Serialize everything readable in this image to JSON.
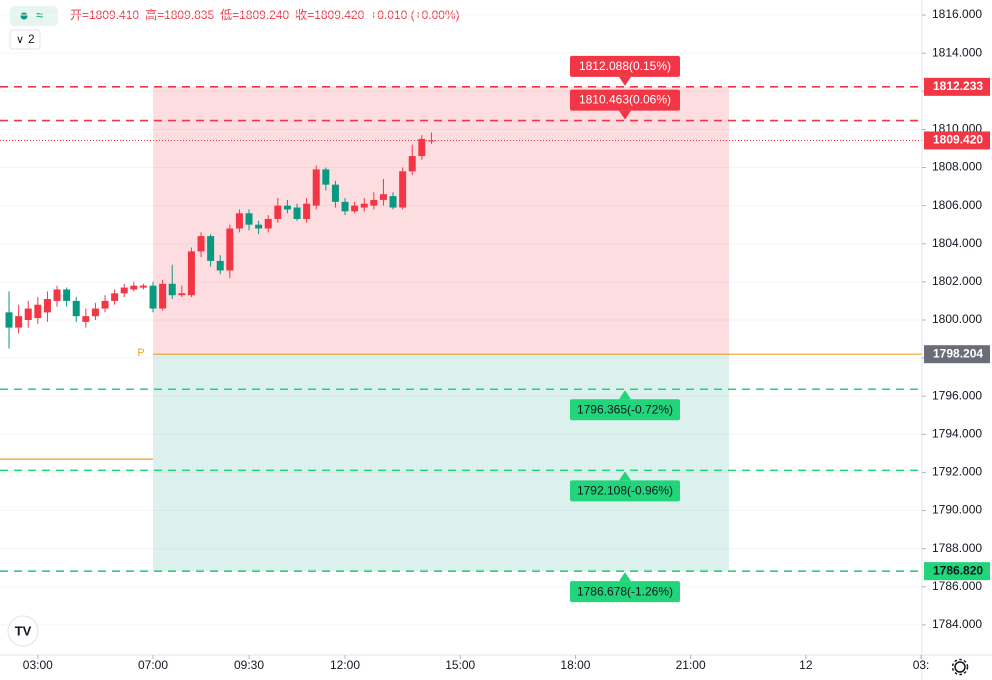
{
  "chart_data": {
    "type": "candlestick",
    "legend_count": "2",
    "ohlc": [
      "开=1809.410",
      "高=1809.835",
      "低=1809.240",
      "收=1809.420",
      "+0.010 (+0.00%)"
    ],
    "x": [
      -15,
      -14,
      -13,
      -12,
      -11,
      -10,
      -9,
      -8,
      -7,
      -6,
      -5,
      -4,
      -3,
      -2,
      -1,
      0,
      1,
      2,
      3,
      4,
      5,
      6,
      7,
      8,
      9,
      10,
      11,
      12,
      13,
      14,
      15,
      16,
      17,
      18,
      19,
      20,
      21,
      22,
      23,
      24,
      25,
      26,
      27,
      28,
      29
    ],
    "open": [
      1800.4,
      1799.6,
      1800.0,
      1800.1,
      1800.4,
      1801.0,
      1801.6,
      1801.0,
      1799.9,
      1800.2,
      1800.6,
      1801.0,
      1801.4,
      1801.6,
      1801.7,
      1801.8,
      1800.6,
      1801.9,
      1801.3,
      1801.3,
      1803.6,
      1804.4,
      1803.1,
      1802.6,
      1804.8,
      1805.6,
      1805.0,
      1804.8,
      1805.3,
      1806.0,
      1805.9,
      1805.3,
      1806.0,
      1807.9,
      1807.1,
      1806.2,
      1805.7,
      1805.9,
      1806.0,
      1806.3,
      1806.5,
      1805.9,
      1807.8,
      1808.6,
      1809.41
    ],
    "high": [
      1801.5,
      1800.8,
      1801.0,
      1801.2,
      1801.5,
      1801.8,
      1801.7,
      1801.2,
      1800.6,
      1800.9,
      1801.3,
      1801.6,
      1801.9,
      1802.0,
      1801.9,
      1802.0,
      1802.1,
      1802.9,
      1801.8,
      1803.8,
      1804.6,
      1804.5,
      1803.4,
      1805.0,
      1805.8,
      1805.8,
      1805.2,
      1805.5,
      1806.4,
      1806.3,
      1806.1,
      1806.4,
      1808.1,
      1808.0,
      1807.3,
      1806.4,
      1806.2,
      1806.4,
      1806.7,
      1807.4,
      1806.7,
      1808.0,
      1809.2,
      1809.7,
      1809.835
    ],
    "low": [
      1798.5,
      1799.3,
      1799.6,
      1799.8,
      1799.9,
      1800.7,
      1800.7,
      1799.9,
      1799.6,
      1800.0,
      1800.4,
      1800.8,
      1801.2,
      1801.5,
      1801.6,
      1800.4,
      1800.5,
      1801.1,
      1801.2,
      1801.2,
      1803.3,
      1802.8,
      1802.4,
      1802.2,
      1804.6,
      1804.7,
      1804.5,
      1804.6,
      1805.1,
      1805.6,
      1805.2,
      1805.1,
      1805.8,
      1806.8,
      1805.9,
      1805.5,
      1805.6,
      1805.7,
      1805.8,
      1806.0,
      1805.8,
      1805.8,
      1807.6,
      1808.4,
      1809.24
    ],
    "close": [
      1799.6,
      1800.2,
      1800.6,
      1800.8,
      1801.1,
      1801.6,
      1801.0,
      1800.2,
      1800.2,
      1800.6,
      1801.0,
      1801.4,
      1801.7,
      1801.8,
      1801.8,
      1800.6,
      1801.9,
      1801.3,
      1801.4,
      1803.6,
      1804.4,
      1803.1,
      1802.6,
      1804.8,
      1805.6,
      1805.0,
      1804.8,
      1805.3,
      1806.0,
      1805.8,
      1805.3,
      1806.1,
      1807.9,
      1807.1,
      1806.2,
      1805.7,
      1806.0,
      1806.1,
      1806.3,
      1806.6,
      1805.9,
      1807.8,
      1808.6,
      1809.5,
      1809.42
    ],
    "up_color": "#f23645",
    "down_color": "#089981",
    "xlim": [
      -15.94,
      80.1
    ],
    "xticks": [
      {
        "value": -12,
        "label": "03:00"
      },
      {
        "value": 0,
        "label": "07:00"
      },
      {
        "value": 10,
        "label": "09:30"
      },
      {
        "value": 20,
        "label": "12:00"
      },
      {
        "value": 32,
        "label": "15:00"
      },
      {
        "value": 44,
        "label": "18:00"
      },
      {
        "value": 56,
        "label": "21:00"
      },
      {
        "value": 68,
        "label": "12"
      },
      {
        "value": 80,
        "label": "03:"
      }
    ],
    "ylim": [
      1782.42,
      1816.79
    ],
    "yticks": [
      {
        "value": 1784,
        "label": "1784.000"
      },
      {
        "value": 1786,
        "label": "1786.000"
      },
      {
        "value": 1788,
        "label": "1788.000"
      },
      {
        "value": 1790,
        "label": "1790.000"
      },
      {
        "value": 1792,
        "label": "1792.000"
      },
      {
        "value": 1794,
        "label": "1794.000"
      },
      {
        "value": 1796,
        "label": "1796.000"
      },
      {
        "value": 1798,
        "label": "1798.000"
      },
      {
        "value": 1800,
        "label": "1800.000"
      },
      {
        "value": 1802,
        "label": "1802.000"
      },
      {
        "value": 1804,
        "label": "1804.000"
      },
      {
        "value": 1806,
        "label": "1806.000"
      },
      {
        "value": 1808,
        "label": "1808.000"
      },
      {
        "value": 1810,
        "label": "1810.000"
      },
      {
        "value": 1812,
        "label": "1812.000"
      },
      {
        "value": 1814,
        "label": "1814.000"
      },
      {
        "value": 1816,
        "label": "1816.000"
      }
    ],
    "grid": true,
    "zone_x": [
      0,
      60
    ],
    "levels": [
      {
        "value": 1812.233,
        "label": "1812.233",
        "target": "1812.088(0.15%)",
        "color": "#f23645"
      },
      {
        "value": 1810.463,
        "target": "1810.463(0.06%)",
        "color": "#f23645"
      },
      {
        "value": 1796.365,
        "target": "1796.365(-0.72%)",
        "color": "#22d47a"
      },
      {
        "value": 1792.108,
        "target": "1792.108(-0.96%)",
        "color": "#22d47a"
      },
      {
        "value": 1786.82,
        "label": "1786.820",
        "target": "1786.678(-1.26%)",
        "color": "#22d47a"
      }
    ],
    "pivot": {
      "value": 1798.204,
      "label": "1798.204",
      "marker": "P",
      "color": "#f0a028"
    },
    "prior_pivot": 1792.7,
    "last": {
      "value": 1809.42,
      "label": "1809.420",
      "color": "#f23645"
    }
  }
}
